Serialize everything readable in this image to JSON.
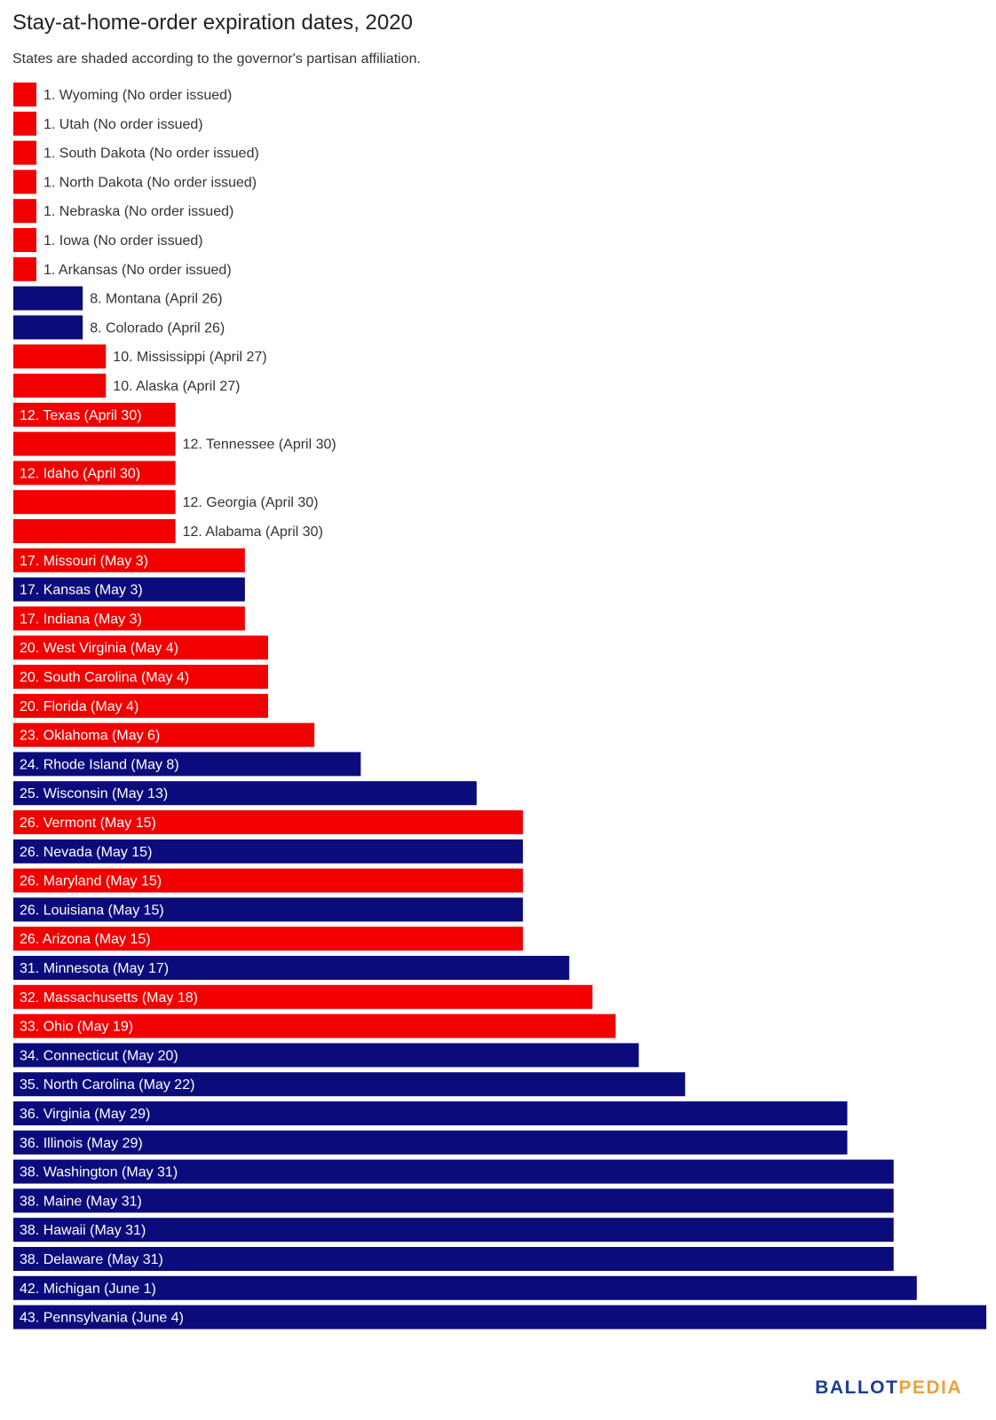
{
  "header": {
    "title": "Stay-at-home-order expiration dates, 2020",
    "subtitle": "States are shaded according to the governor's partisan affiliation."
  },
  "logo": {
    "part1": "BALLOT",
    "part2": "PEDIA"
  },
  "colors": {
    "Republican": "#f20000",
    "Democratic": "#0b0b7c",
    "label_inside": "#ffffff",
    "label_outside": "#333333"
  },
  "chart_data": {
    "type": "bar",
    "orientation": "horizontal",
    "title": "Stay-at-home-order expiration dates, 2020",
    "subtitle": "States are shaded according to the governor's partisan affiliation.",
    "xlabel": "",
    "ylabel": "",
    "grid": false,
    "value_unit": "days after April 24, 2020 (0 = no order issued)",
    "xlim": [
      0,
      41
    ],
    "bars": [
      {
        "label": "1. Wyoming (No order issued)",
        "value": 0,
        "party": "Republican"
      },
      {
        "label": "1. Utah (No order issued)",
        "value": 0,
        "party": "Republican"
      },
      {
        "label": "1. South Dakota (No order issued)",
        "value": 0,
        "party": "Republican"
      },
      {
        "label": "1. North Dakota (No order issued)",
        "value": 0,
        "party": "Republican"
      },
      {
        "label": "1. Nebraska (No order issued)",
        "value": 0,
        "party": "Republican"
      },
      {
        "label": "1. Iowa (No order issued)",
        "value": 0,
        "party": "Republican"
      },
      {
        "label": "1. Arkansas (No order issued)",
        "value": 0,
        "party": "Republican"
      },
      {
        "label": "8. Montana (April 26)",
        "value": 2,
        "party": "Democratic"
      },
      {
        "label": "8. Colorado (April 26)",
        "value": 2,
        "party": "Democratic"
      },
      {
        "label": "10. Mississippi (April 27)",
        "value": 3,
        "party": "Republican"
      },
      {
        "label": "10. Alaska (April 27)",
        "value": 3,
        "party": "Republican"
      },
      {
        "label": "12. Texas (April 30)",
        "value": 6,
        "party": "Republican"
      },
      {
        "label": "12. Tennessee (April 30)",
        "value": 6,
        "party": "Republican",
        "label_outside": true
      },
      {
        "label": "12. Idaho (April 30)",
        "value": 6,
        "party": "Republican"
      },
      {
        "label": "12. Georgia (April 30)",
        "value": 6,
        "party": "Republican",
        "label_outside": true
      },
      {
        "label": "12. Alabama (April 30)",
        "value": 6,
        "party": "Republican",
        "label_outside": true
      },
      {
        "label": "17. Missouri (May 3)",
        "value": 9,
        "party": "Republican"
      },
      {
        "label": "17. Kansas (May 3)",
        "value": 9,
        "party": "Democratic"
      },
      {
        "label": "17. Indiana (May 3)",
        "value": 9,
        "party": "Republican"
      },
      {
        "label": "20. West Virginia (May 4)",
        "value": 10,
        "party": "Republican"
      },
      {
        "label": "20. South Carolina (May 4)",
        "value": 10,
        "party": "Republican"
      },
      {
        "label": "20. Florida (May 4)",
        "value": 10,
        "party": "Republican"
      },
      {
        "label": "23. Oklahoma (May 6)",
        "value": 12,
        "party": "Republican"
      },
      {
        "label": "24. Rhode Island (May 8)",
        "value": 14,
        "party": "Democratic"
      },
      {
        "label": "25. Wisconsin (May 13)",
        "value": 19,
        "party": "Democratic"
      },
      {
        "label": "26. Vermont (May 15)",
        "value": 21,
        "party": "Republican"
      },
      {
        "label": "26. Nevada (May 15)",
        "value": 21,
        "party": "Democratic"
      },
      {
        "label": "26. Maryland (May 15)",
        "value": 21,
        "party": "Republican"
      },
      {
        "label": "26. Louisiana (May 15)",
        "value": 21,
        "party": "Democratic"
      },
      {
        "label": "26. Arizona (May 15)",
        "value": 21,
        "party": "Republican"
      },
      {
        "label": "31. Minnesota (May 17)",
        "value": 23,
        "party": "Democratic"
      },
      {
        "label": "32. Massachusetts (May 18)",
        "value": 24,
        "party": "Republican"
      },
      {
        "label": "33. Ohio (May 19)",
        "value": 25,
        "party": "Republican"
      },
      {
        "label": "34. Connecticut (May 20)",
        "value": 26,
        "party": "Democratic"
      },
      {
        "label": "35. North Carolina (May 22)",
        "value": 28,
        "party": "Democratic"
      },
      {
        "label": "36. Virginia (May 29)",
        "value": 35,
        "party": "Democratic"
      },
      {
        "label": "36. Illinois (May 29)",
        "value": 35,
        "party": "Democratic"
      },
      {
        "label": "38. Washington (May 31)",
        "value": 37,
        "party": "Democratic"
      },
      {
        "label": "38. Maine (May 31)",
        "value": 37,
        "party": "Democratic"
      },
      {
        "label": "38. Hawaii (May 31)",
        "value": 37,
        "party": "Democratic"
      },
      {
        "label": "38. Delaware (May 31)",
        "value": 37,
        "party": "Democratic"
      },
      {
        "label": "42. Michigan (June 1)",
        "value": 38,
        "party": "Democratic"
      },
      {
        "label": "43. Pennsylvania (June 4)",
        "value": 41,
        "party": "Democratic"
      }
    ]
  }
}
